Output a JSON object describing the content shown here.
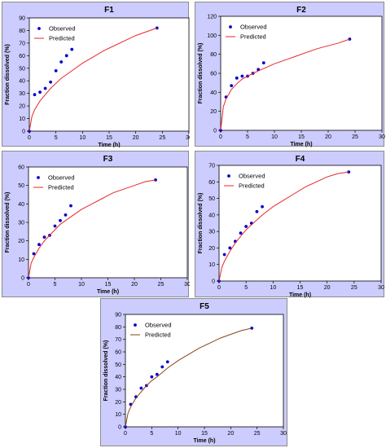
{
  "chart_data": [
    {
      "type": "scatter",
      "title": "F1",
      "xlabel": "Time (h)",
      "ylabel": "Fraction dissolved (%)",
      "xlim": [
        0,
        30
      ],
      "ylim": [
        0,
        90
      ],
      "xticks": [
        0,
        5,
        10,
        15,
        20,
        25,
        30
      ],
      "yticks": [
        0,
        10,
        20,
        30,
        40,
        50,
        60,
        70,
        80,
        90
      ],
      "legend": "top-left",
      "series": [
        {
          "name": "Observed",
          "kind": "points",
          "color": "#0000cc",
          "x": [
            0,
            1,
            2,
            3,
            4,
            5,
            6,
            7,
            8,
            24
          ],
          "y": [
            0,
            29,
            31,
            34,
            39,
            48,
            55,
            60,
            65,
            82
          ]
        },
        {
          "name": "Predicted",
          "kind": "curve",
          "color": "#e8262b",
          "x": [
            0,
            0.5,
            1,
            2,
            3,
            4,
            5,
            6,
            8,
            10,
            12,
            14,
            16,
            18,
            20,
            22,
            24
          ],
          "y": [
            0,
            12,
            17,
            24,
            29,
            34,
            38,
            42,
            48,
            54,
            59,
            64,
            68,
            72,
            76,
            79,
            82
          ]
        }
      ]
    },
    {
      "type": "scatter",
      "title": "F2",
      "xlabel": "Time (h)",
      "ylabel": "Fraction dissolved (%)",
      "xlim": [
        0,
        30
      ],
      "ylim": [
        0,
        120
      ],
      "xticks": [
        0,
        5,
        10,
        15,
        20,
        25,
        30
      ],
      "yticks": [
        0,
        20,
        40,
        60,
        80,
        100,
        120
      ],
      "legend": "top-left",
      "series": [
        {
          "name": "Observed",
          "kind": "points",
          "color": "#0000cc",
          "x": [
            0,
            1,
            2,
            3,
            4,
            5,
            6,
            7,
            8,
            24
          ],
          "y": [
            0,
            35,
            47,
            55,
            57,
            57,
            60,
            64,
            71,
            96
          ]
        },
        {
          "name": "Predicted",
          "kind": "curve",
          "color": "#e8262b",
          "x": [
            0,
            0.5,
            1,
            2,
            3,
            4,
            5,
            6,
            8,
            10,
            12,
            14,
            16,
            18,
            20,
            22,
            24
          ],
          "y": [
            0,
            25,
            33,
            43,
            49,
            54,
            57,
            60,
            65,
            70,
            74,
            78,
            82,
            86,
            89,
            92,
            96
          ]
        }
      ]
    },
    {
      "type": "scatter",
      "title": "F3",
      "xlabel": "Time (h)",
      "ylabel": "Fraction dissolved (%)",
      "xlim": [
        0,
        30
      ],
      "ylim": [
        0,
        60
      ],
      "xticks": [
        0,
        5,
        10,
        15,
        20,
        25,
        30
      ],
      "yticks": [
        0,
        10,
        20,
        30,
        40,
        50,
        60
      ],
      "legend": "top-left",
      "series": [
        {
          "name": "Observed",
          "kind": "points",
          "color": "#0000cc",
          "x": [
            0,
            1,
            2,
            3,
            4,
            5,
            6,
            7,
            8,
            24
          ],
          "y": [
            0,
            13,
            18,
            22,
            23,
            28,
            31,
            34,
            39,
            53
          ]
        },
        {
          "name": "Predicted",
          "kind": "curve",
          "color": "#e8262b",
          "x": [
            0,
            0.5,
            1,
            2,
            3,
            4,
            5,
            6,
            8,
            10,
            12,
            14,
            16,
            18,
            20,
            22,
            24
          ],
          "y": [
            0,
            8,
            11,
            16,
            20,
            23,
            26,
            29,
            33,
            37,
            40,
            43,
            46,
            48,
            50,
            52,
            53
          ]
        }
      ]
    },
    {
      "type": "scatter",
      "title": "F4",
      "xlabel": "Time (h)",
      "ylabel": "Fraction dissolved (%)",
      "xlim": [
        0,
        30
      ],
      "ylim": [
        0,
        70
      ],
      "xticks": [
        0,
        5,
        10,
        15,
        20,
        25,
        30
      ],
      "yticks": [
        0,
        10,
        20,
        30,
        40,
        50,
        60,
        70
      ],
      "legend": "top-left",
      "series": [
        {
          "name": "Observed",
          "kind": "points",
          "color": "#0000cc",
          "x": [
            0,
            1,
            2,
            3,
            4,
            5,
            6,
            7,
            8,
            24
          ],
          "y": [
            0,
            16,
            20,
            24,
            29,
            33,
            35,
            42,
            45,
            66
          ]
        },
        {
          "name": "Predicted",
          "kind": "curve",
          "color": "#e8262b",
          "x": [
            0,
            0.5,
            1,
            2,
            3,
            4,
            5,
            6,
            8,
            10,
            12,
            14,
            16,
            18,
            20,
            22,
            24
          ],
          "y": [
            0,
            8,
            12,
            18,
            23,
            27,
            31,
            34,
            40,
            45,
            49,
            53,
            57,
            60,
            63,
            65,
            66
          ]
        }
      ]
    },
    {
      "type": "scatter",
      "title": "F5",
      "xlabel": "Time (h)",
      "ylabel": "Fraction dissolved (%)",
      "xlim": [
        0,
        30
      ],
      "ylim": [
        0,
        90
      ],
      "xticks": [
        0,
        5,
        10,
        15,
        20,
        25,
        30
      ],
      "yticks": [
        0,
        10,
        20,
        30,
        40,
        50,
        60,
        70,
        80,
        90
      ],
      "legend": "top-left",
      "series": [
        {
          "name": "Observed",
          "kind": "points",
          "color": "#0000cc",
          "x": [
            0,
            1,
            2,
            3,
            4,
            5,
            6,
            7,
            8,
            24
          ],
          "y": [
            0,
            18,
            24,
            31,
            33,
            40,
            42,
            48,
            52,
            79
          ]
        },
        {
          "name": "Predicted",
          "kind": "curve",
          "color": "#8b4513",
          "x": [
            0,
            0.5,
            1,
            2,
            3,
            4,
            5,
            6,
            8,
            10,
            12,
            14,
            16,
            18,
            20,
            22,
            24
          ],
          "y": [
            0,
            11,
            16,
            23,
            28,
            33,
            37,
            40,
            47,
            53,
            58,
            63,
            67,
            71,
            74,
            77,
            79
          ]
        }
      ]
    }
  ]
}
